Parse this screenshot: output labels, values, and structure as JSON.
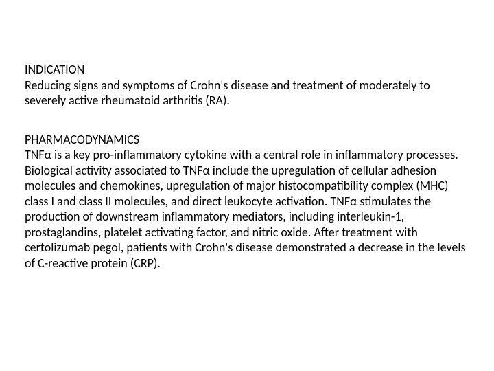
{
  "document": {
    "text_color": "#000000",
    "background_color": "#ffffff",
    "font_size_pt": 14,
    "sections": [
      {
        "heading": "INDICATION",
        "body": "Reducing signs and symptoms of Crohn's disease and treatment of moderately to severely active rheumatoid arthritis (RA)."
      },
      {
        "heading": "PHARMACODYNAMICS",
        "body": "TNFα is a key pro-inflammatory cytokine with a central role in inflammatory processes. Biological activity associated to TNFα include the upregulation of cellular adhesion molecules and chemokines, upregulation of major histocompatibility complex (MHC) class I and class II molecules, and direct leukocyte activation. TNFα stimulates the production of downstream inflammatory mediators, including interleukin-1, prostaglandins, platelet activating factor, and nitric oxide. After treatment with certolizumab pegol, patients with Crohn's disease demonstrated a decrease in the levels of C-reactive protein (CRP)."
      }
    ]
  }
}
